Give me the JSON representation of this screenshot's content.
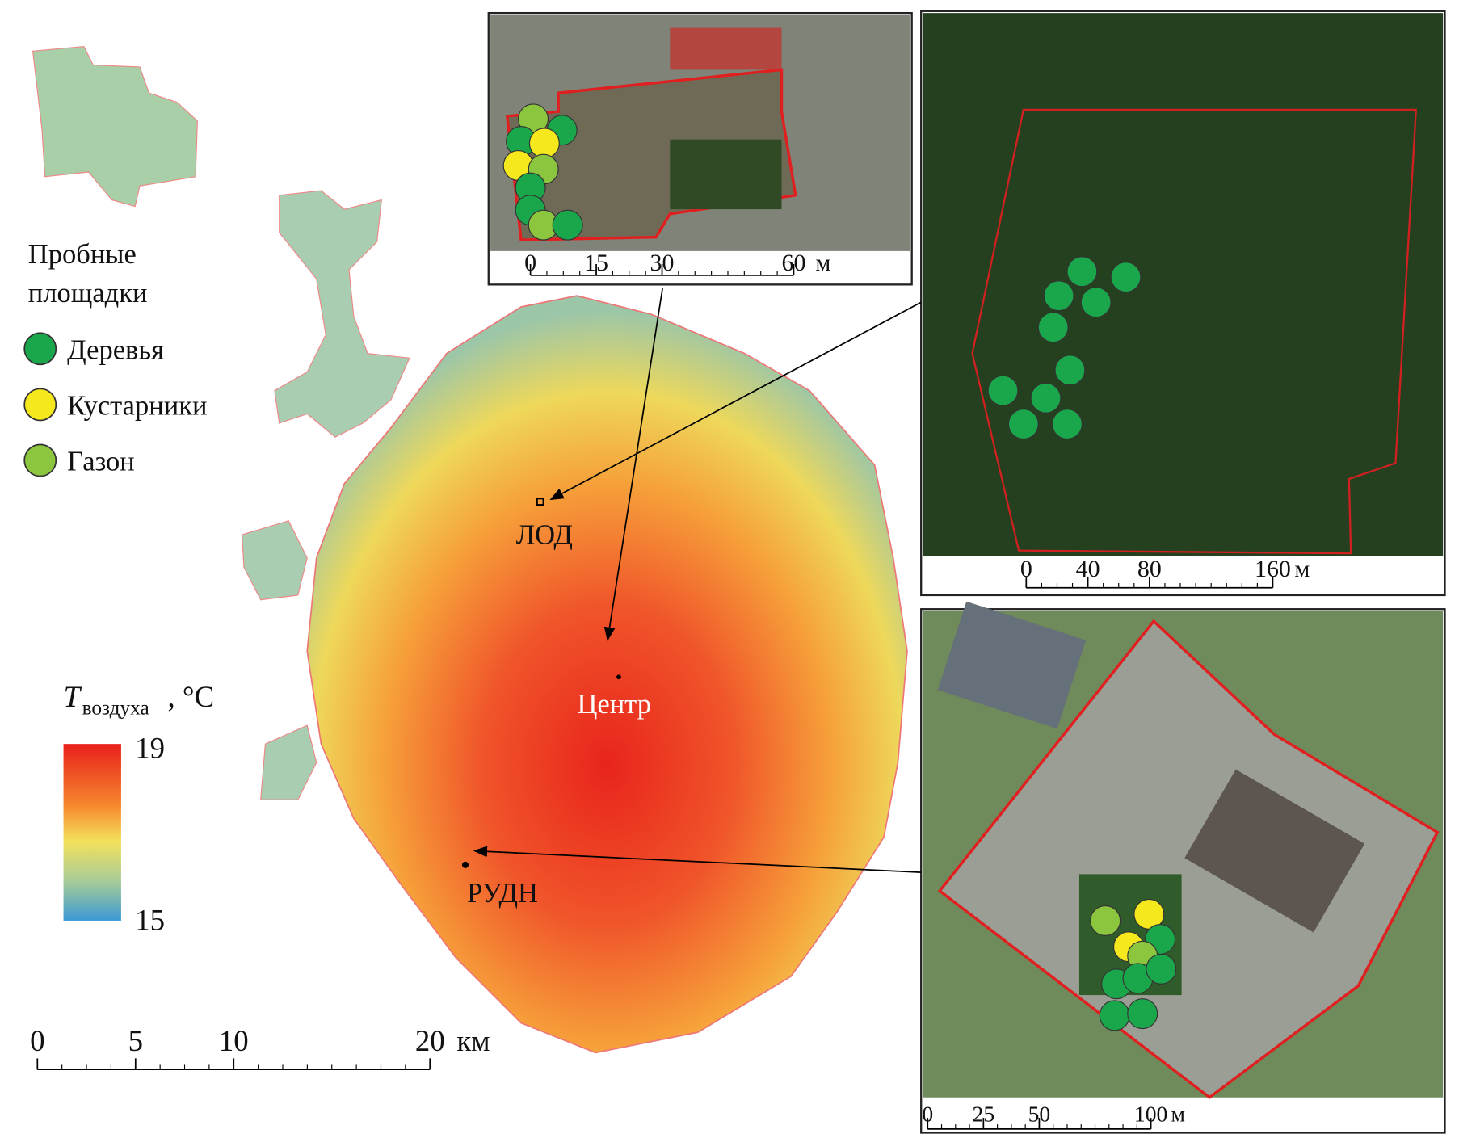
{
  "legend": {
    "title_lines": [
      "Пробные",
      "площадки"
    ],
    "items": [
      {
        "label": "Деревья",
        "color": "#1aa64a"
      },
      {
        "label": "Кустарники",
        "color": "#f5e81c"
      },
      {
        "label": "Газон",
        "color": "#8cc63f"
      }
    ]
  },
  "colorbar": {
    "symbol": "T",
    "subscript": "воздуха",
    "unit": ", °C",
    "max": 19,
    "min": 15
  },
  "places": [
    "ЛОД",
    "Центр",
    "РУДН"
  ],
  "main_scale": {
    "ticks": [
      0,
      5,
      10,
      20
    ],
    "unit": "км"
  },
  "insets": [
    {
      "ticks": [
        0,
        15,
        30,
        60
      ],
      "unit": "м"
    },
    {
      "ticks": [
        0,
        40,
        80,
        160
      ],
      "unit": "м"
    },
    {
      "ticks": [
        0,
        25,
        50,
        100
      ],
      "unit": "м"
    }
  ]
}
